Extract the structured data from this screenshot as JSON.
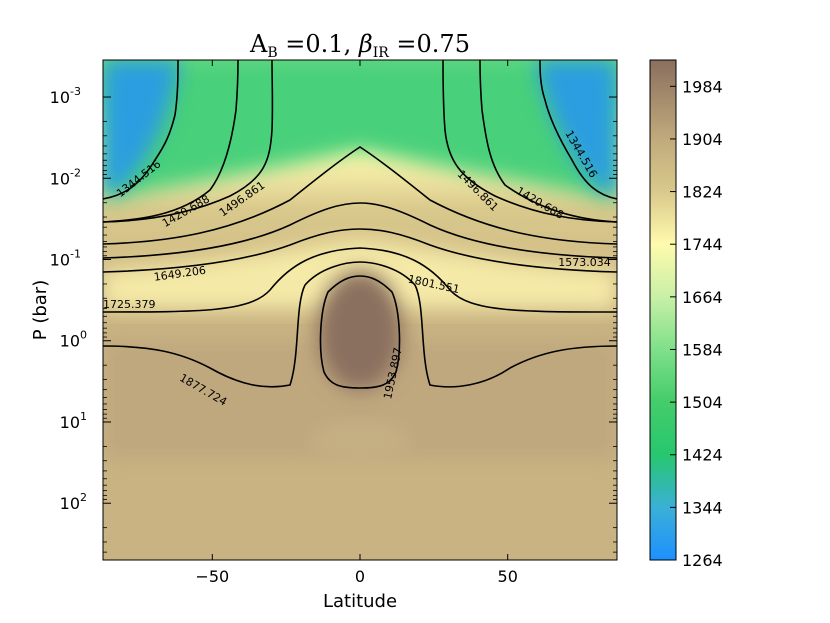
{
  "chart_data": {
    "type": "heatmap",
    "title": "A_B = 0.1, β_IR = 0.75",
    "title_parts": {
      "a": "A",
      "a_sub": "B",
      "eq1": " =0.1, ",
      "beta": "β",
      "beta_sub": "IR",
      "eq2": " =0.75"
    },
    "xlabel": "Latitude",
    "ylabel": "P (bar)",
    "xlim": [
      -87,
      87
    ],
    "ylim_bar": [
      500,
      0.00035
    ],
    "y_scale": "log",
    "grid": false,
    "x_ticks": [
      {
        "value": -50,
        "label": "−50"
      },
      {
        "value": 0,
        "label": "0"
      },
      {
        "value": 50,
        "label": "50"
      }
    ],
    "y_ticks": [
      {
        "exp": -3,
        "base": "10",
        "sup": "-3"
      },
      {
        "exp": -2,
        "base": "10",
        "sup": "-2"
      },
      {
        "exp": -1,
        "base": "10",
        "sup": "-1"
      },
      {
        "exp": 0,
        "base": "10",
        "sup": "0"
      },
      {
        "exp": 1,
        "base": "10",
        "sup": "1"
      },
      {
        "exp": 2,
        "base": "10",
        "sup": "2"
      }
    ],
    "colorbar": {
      "min": 1264,
      "max": 2024,
      "ticks": [
        "1264",
        "1344",
        "1424",
        "1504",
        "1584",
        "1664",
        "1744",
        "1824",
        "1904",
        "1984"
      ],
      "colors": [
        {
          "value": 1264,
          "color": "#1e90ff"
        },
        {
          "value": 1344,
          "color": "#3ab0d6"
        },
        {
          "value": 1424,
          "color": "#27c76f"
        },
        {
          "value": 1504,
          "color": "#44cc6a"
        },
        {
          "value": 1584,
          "color": "#7fe08a"
        },
        {
          "value": 1664,
          "color": "#c8f0a6"
        },
        {
          "value": 1744,
          "color": "#fffaad"
        },
        {
          "value": 1824,
          "color": "#d9c98c"
        },
        {
          "value": 1904,
          "color": "#c0aa7c"
        },
        {
          "value": 2024,
          "color": "#8a6f5e"
        }
      ]
    },
    "contour_labels": [
      {
        "text": "1344.516",
        "lat": -75,
        "logp": -2.0,
        "angle": -38
      },
      {
        "text": "1344.516",
        "lat": 75,
        "logp": -2.3,
        "angle": 60
      },
      {
        "text": "1420.688",
        "lat": -59,
        "logp": -1.6,
        "angle": -30
      },
      {
        "text": "1420.688",
        "lat": 61,
        "logp": -1.7,
        "angle": 30
      },
      {
        "text": "1496.861",
        "lat": -40,
        "logp": -1.75,
        "angle": -35
      },
      {
        "text": "1496.861",
        "lat": 40,
        "logp": -1.85,
        "angle": 45
      },
      {
        "text": "1573.034",
        "lat": 76,
        "logp": -0.97,
        "angle": 0
      },
      {
        "text": "1649.206",
        "lat": -61,
        "logp": -0.83,
        "angle": -8
      },
      {
        "text": "1725.379",
        "lat": -87,
        "logp": -0.45,
        "angle": 0
      },
      {
        "text": "1801.551",
        "lat": 25,
        "logp": -0.7,
        "angle": 12
      },
      {
        "text": "1877.724",
        "lat": -53,
        "logp": 0.6,
        "angle": 30
      },
      {
        "text": "1953.897",
        "lat": 11,
        "logp": 0.4,
        "angle": -78
      }
    ]
  }
}
